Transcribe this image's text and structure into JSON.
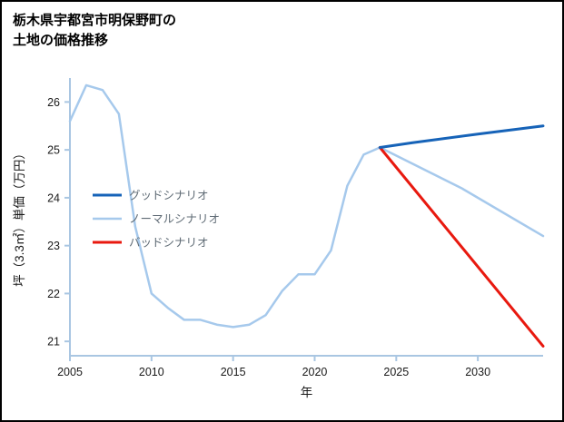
{
  "header": {
    "title_line1": "栃木県宇都宮市明保野町の",
    "title_line2": "土地の価格推移"
  },
  "chart_data": {
    "type": "line",
    "title": "栃木県宇都宮市明保野町の 土地の価格推移",
    "xlabel": "年",
    "ylabel": "坪（3.3㎡）単価（万円）",
    "xlim": [
      2005,
      2034
    ],
    "ylim": [
      20.7,
      26.5
    ],
    "xticks": [
      2005,
      2010,
      2015,
      2020,
      2025,
      2030
    ],
    "yticks": [
      21,
      22,
      23,
      24,
      25,
      26
    ],
    "grid": false,
    "legend_position": "left-middle",
    "axis_color": "#a9c6e2",
    "tick_label_color": "#1a1a1a",
    "legend_text_color": "#5f6b75",
    "series": [
      {
        "name": "グッドシナリオ",
        "color": "#1663b8",
        "width": 3,
        "x": [
          2024,
          2026,
          2030,
          2034
        ],
        "y": [
          25.05,
          25.15,
          25.33,
          25.5
        ]
      },
      {
        "name": "ノーマルシナリオ",
        "color": "#a6c9ec",
        "width": 2.5,
        "x": [
          2005,
          2006,
          2007,
          2008,
          2009,
          2010,
          2011,
          2012,
          2013,
          2014,
          2015,
          2016,
          2017,
          2018,
          2019,
          2020,
          2021,
          2022,
          2023,
          2024,
          2029,
          2034
        ],
        "y": [
          25.6,
          26.35,
          26.25,
          25.75,
          23.4,
          22.0,
          21.7,
          21.45,
          21.45,
          21.35,
          21.3,
          21.35,
          21.55,
          22.05,
          22.4,
          22.4,
          22.9,
          24.25,
          24.9,
          25.05,
          24.2,
          23.2
        ]
      },
      {
        "name": "バッドシナリオ",
        "color": "#e8190f",
        "width": 3,
        "x": [
          2024,
          2034
        ],
        "y": [
          25.05,
          20.9
        ]
      }
    ]
  }
}
